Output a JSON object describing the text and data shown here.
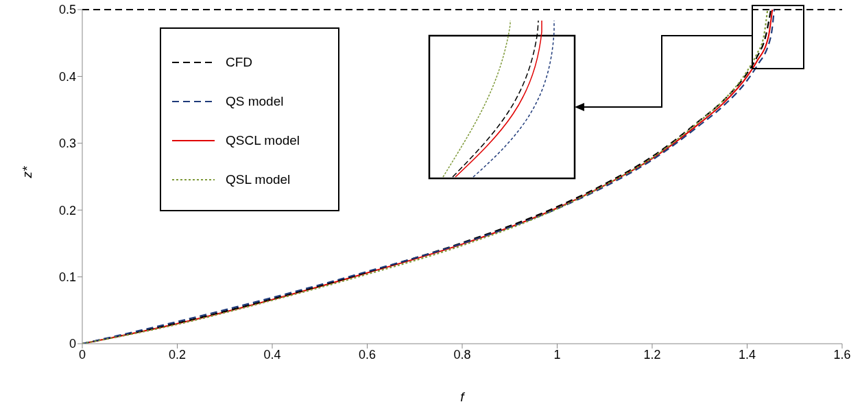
{
  "chart_data": {
    "type": "line",
    "xlabel": "f",
    "ylabel": "z*",
    "xlim": [
      0,
      1.6
    ],
    "ylim": [
      0,
      0.5
    ],
    "xticks": [
      0,
      {
        "value": 0.2,
        "label": "0.2"
      },
      {
        "value": 0.4,
        "label": "0.4"
      },
      {
        "value": 0.6,
        "label": "0.6"
      },
      {
        "value": 0.8,
        "label": "0.8"
      },
      1,
      {
        "value": 1.2,
        "label": "1.2"
      },
      {
        "value": 1.4,
        "label": "1.4"
      },
      {
        "value": 1.6,
        "label": "1.6"
      }
    ],
    "yticks": [
      0,
      {
        "value": 0.1,
        "label": "0.1"
      },
      {
        "value": 0.2,
        "label": "0.2"
      },
      {
        "value": 0.3,
        "label": "0.3"
      },
      {
        "value": 0.4,
        "label": "0.4"
      },
      {
        "value": 0.5,
        "label": "0.5"
      }
    ],
    "grid": false,
    "legend": "top left",
    "marker": "none",
    "ref_lines": [
      {
        "axis": "y",
        "value": 0.5,
        "color": "#000000",
        "line_style": "dashed"
      }
    ],
    "series": [
      {
        "name": "CFD",
        "color": "#000000",
        "line_style": "dashed",
        "x": [
          0,
          0.2,
          0.4,
          0.6,
          0.8,
          1.0,
          1.1,
          1.2,
          1.3,
          1.35,
          1.4,
          1.42,
          1.44,
          1.45
        ],
        "values": [
          0,
          0.031,
          0.067,
          0.107,
          0.151,
          0.205,
          0.239,
          0.28,
          0.334,
          0.364,
          0.405,
          0.428,
          0.463,
          0.5
        ]
      },
      {
        "name": "QS model",
        "color": "#1f3a7a",
        "line_style": "dashed",
        "x": [
          0,
          0.2,
          0.4,
          0.6,
          0.8,
          1.0,
          1.1,
          1.2,
          1.3,
          1.35,
          1.4,
          1.42,
          1.45,
          1.457
        ],
        "values": [
          0,
          0.033,
          0.069,
          0.108,
          0.15,
          0.202,
          0.235,
          0.275,
          0.327,
          0.356,
          0.394,
          0.415,
          0.46,
          0.5
        ]
      },
      {
        "name": "QSCL model",
        "color": "#e00000",
        "line_style": "solid",
        "x": [
          0,
          0.2,
          0.4,
          0.6,
          0.8,
          1.0,
          1.1,
          1.2,
          1.3,
          1.35,
          1.4,
          1.42,
          1.445,
          1.453
        ],
        "values": [
          0,
          0.03,
          0.066,
          0.106,
          0.149,
          0.203,
          0.237,
          0.277,
          0.33,
          0.36,
          0.4,
          0.422,
          0.46,
          0.5
        ]
      },
      {
        "name": "QSL model",
        "color": "#7f9a3a",
        "line_style": "dotted",
        "x": [
          0,
          0.2,
          0.4,
          0.6,
          0.8,
          1.0,
          1.1,
          1.2,
          1.3,
          1.35,
          1.4,
          1.42,
          1.435,
          1.443
        ],
        "values": [
          0,
          0.029,
          0.065,
          0.104,
          0.147,
          0.202,
          0.237,
          0.278,
          0.333,
          0.364,
          0.408,
          0.433,
          0.46,
          0.5
        ]
      }
    ]
  }
}
